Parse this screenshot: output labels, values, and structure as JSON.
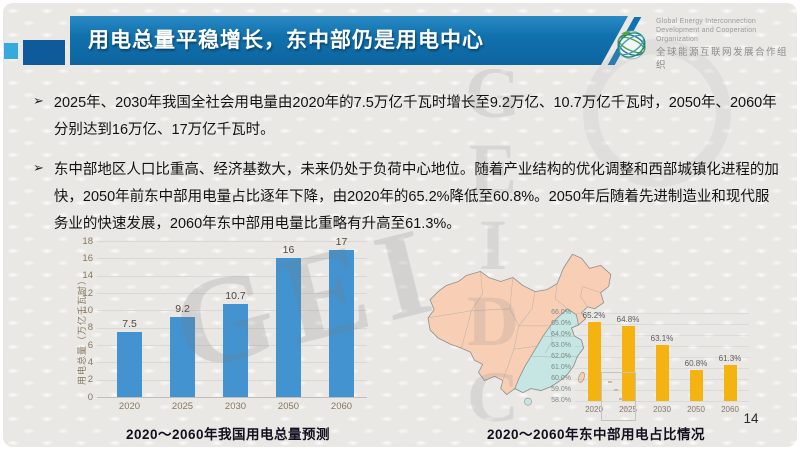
{
  "slide": {
    "title": "用电总量平稳增长，东中部仍是用电中心",
    "page_number": "14",
    "watermark_left": "GEI",
    "watermark_center": "GEIDCO"
  },
  "logo": {
    "org_en_line1": "Global Energy Interconnection",
    "org_en_line2": "Development and Cooperation Organization",
    "org_cn": "全球能源互联网发展合作组织"
  },
  "bullets": [
    {
      "marker": "➢",
      "text": "2025年、2030年我国全社会用电量由2020年的7.5万亿千瓦时增长至9.2万亿、10.7万亿千瓦时，2050年、2060年分别达到16万亿、17万亿千瓦时。"
    },
    {
      "marker": "➢",
      "text": "东中部地区人口比重高、经济基数大，未来仍处于负荷中心地位。随着产业结构的优化调整和西部城镇化进程的加快，2050年前东中部用电量占比逐年下降，由2020年的65.2%降低至60.8%。2050年后随着先进制造业和现代服务业的快速发展，2060年东中部用电量比重略有升高至61.3%。"
    }
  ],
  "chart_data": [
    {
      "type": "bar",
      "title": "2020～2060年我国用电总量预测",
      "categories": [
        "2020",
        "2025",
        "2030",
        "2050",
        "2060"
      ],
      "values": [
        7.5,
        9.2,
        10.7,
        16,
        17
      ],
      "labels": [
        "7.5",
        "9.2",
        "10.7",
        "16",
        "17"
      ],
      "xlabel": "",
      "ylabel": "用电总量（万亿千瓦时）",
      "ylim": [
        0,
        18
      ],
      "ytick_step": 2,
      "grid": true,
      "legend": "none",
      "bar_color": "#4293cf"
    },
    {
      "type": "bar",
      "title": "2020～2060年东中部用电占比情况",
      "categories": [
        "2020",
        "2025",
        "2030",
        "2050",
        "2060"
      ],
      "values": [
        65.2,
        64.8,
        63.1,
        60.8,
        61.3
      ],
      "labels": [
        "65.2%",
        "64.8%",
        "63.1%",
        "60.8%",
        "61.3%"
      ],
      "yticks": [
        "66.0%",
        "65.0%",
        "64.0%",
        "63.0%",
        "62.0%",
        "61.0%",
        "60.0%",
        "59.0%",
        "58.0%"
      ],
      "ylim": [
        58,
        66
      ],
      "grid": false,
      "legend": "none",
      "bar_color": "#f5b311"
    }
  ],
  "map": {
    "label": "china-map-east-central-highlight",
    "west_region_color": "#f8cfb5",
    "east_central_region_color": "#c5e6e2",
    "border_color": "#8f8f8f"
  },
  "colors": {
    "title_bar_blue": "#1172ae",
    "navy_square": "#0e5a9b",
    "cyan_square": "#35aadd",
    "slide_background": "#eae8e5",
    "national_bar_blue": "#4293cf",
    "share_bar_gold": "#f5b311"
  }
}
